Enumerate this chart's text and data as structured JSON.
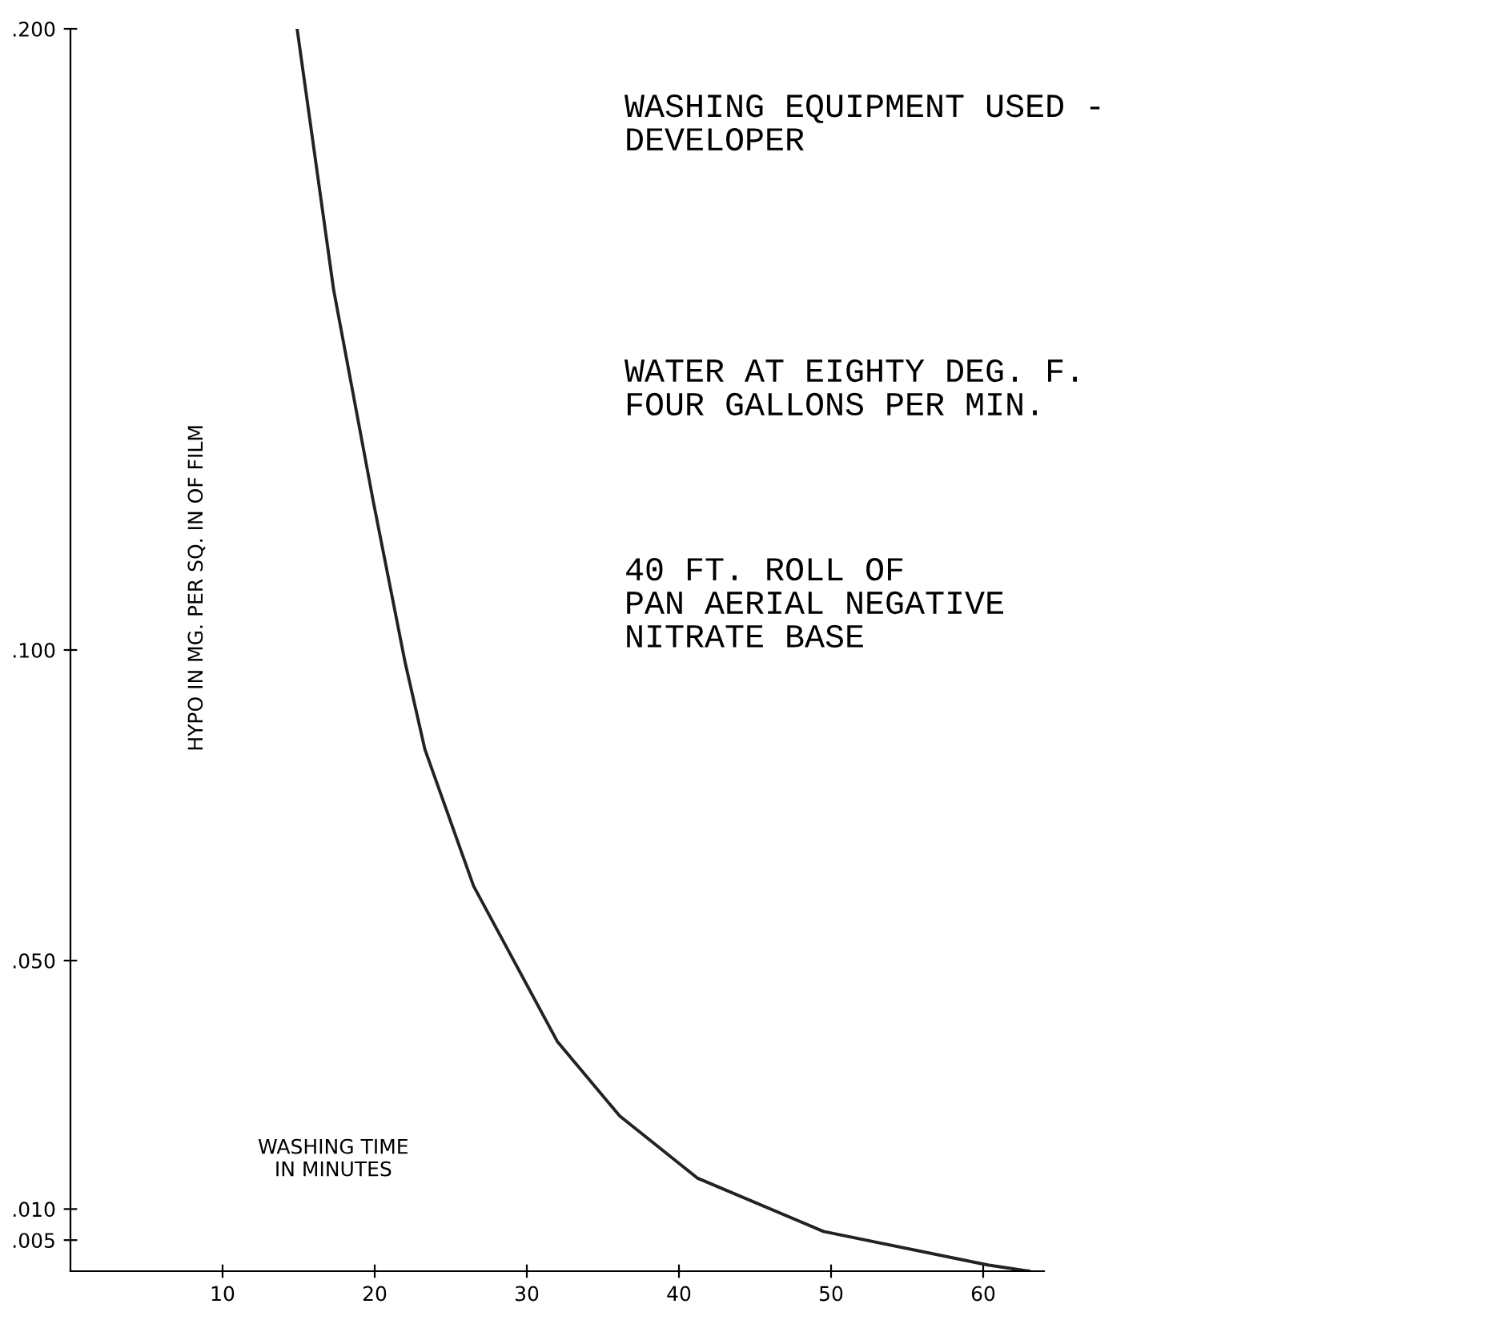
{
  "chart_data": {
    "type": "line",
    "xlabel": "WASHING TIME\nIN MINUTES",
    "ylabel": "HYPO IN MG. PER SQ. IN OF FILM",
    "x": [
      14.9,
      17.3,
      19.9,
      22.0,
      23.3,
      26.5,
      32.0,
      36.1,
      41.2,
      49.5,
      60.3,
      63
    ],
    "series": [
      {
        "color": "#222222",
        "values": [
          0.2,
          0.158,
          0.124,
          0.098,
          0.084,
          0.062,
          0.037,
          0.025,
          0.015,
          0.0064,
          0.001,
          0.0
        ]
      }
    ],
    "xlim": [
      0,
      64
    ],
    "ylim": [
      0,
      0.2
    ],
    "xticks": [
      10,
      20,
      30,
      40,
      50,
      60
    ],
    "yticks": [
      {
        "value": 0.005,
        "label": ".005"
      },
      {
        "value": 0.01,
        "label": ".010"
      },
      {
        "value": 0.05,
        "label": ".050"
      },
      {
        "value": 0.1,
        "label": ".100"
      },
      {
        "value": 0.2,
        "label": ".200"
      }
    ],
    "annotations": [
      "WASHING EQUIPMENT USED -\nDEVELOPER",
      "WATER AT EIGHTY DEG. F.\nFOUR GALLONS PER MIN.",
      "40 FT. ROLL OF\nPAN AERIAL NEGATIVE\nNITRATE BASE"
    ],
    "grid": false,
    "marker": "none",
    "line_style": "solid"
  }
}
